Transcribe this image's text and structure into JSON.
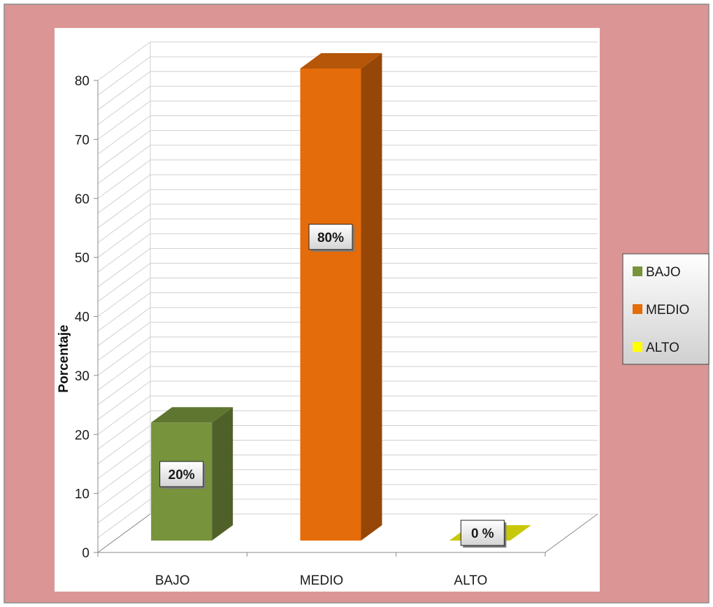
{
  "chart_data": {
    "type": "bar",
    "categories": [
      "BAJO",
      "MEDIO",
      "ALTO"
    ],
    "values": [
      20,
      80,
      0
    ],
    "data_labels": [
      "20%",
      "80%",
      "0 %"
    ],
    "title": "",
    "xlabel": "",
    "ylabel": "Porcentaje",
    "ylim": [
      0,
      80
    ],
    "yticks": [
      0,
      10,
      20,
      30,
      40,
      50,
      60,
      70,
      80
    ],
    "grid": true,
    "three_d": true,
    "legend": {
      "placement": "right",
      "items": [
        "BAJO",
        "MEDIO",
        "ALTO"
      ]
    },
    "colors": [
      "#77933c",
      "#e46c0a",
      "#ffff00"
    ],
    "frame_color": "#db9595",
    "plot_background": "#ffffff"
  }
}
